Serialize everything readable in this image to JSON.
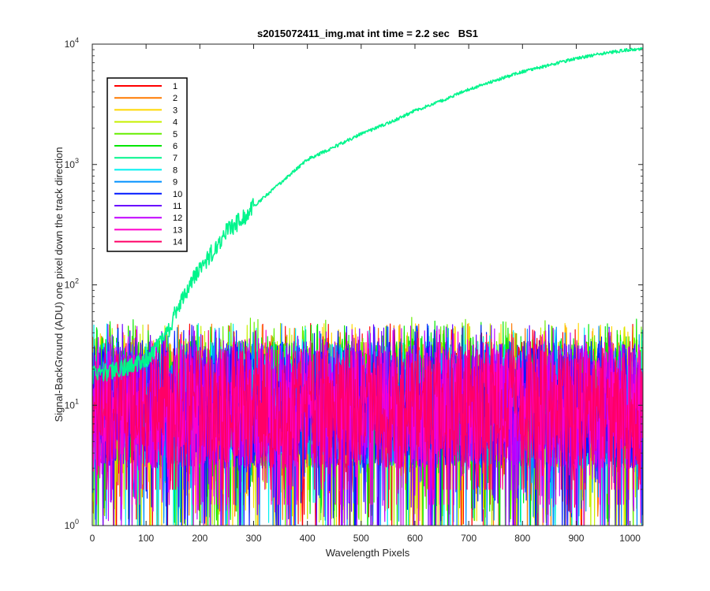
{
  "chart_data": {
    "type": "line",
    "title": "s2015072411_img.mat int time = 2.2 sec   BS1",
    "xlabel": "Wavelength Pixels",
    "ylabel": "Signal-BackGround (ADU) one pixel down the track direction",
    "xlim": [
      0,
      1024
    ],
    "ylim": [
      1,
      10000
    ],
    "yscale": "log",
    "xticks": [
      "0",
      "100",
      "200",
      "300",
      "400",
      "500",
      "600",
      "700",
      "800",
      "900",
      "1000"
    ],
    "yticks": [
      {
        "base": "10",
        "exp": "0"
      },
      {
        "base": "10",
        "exp": "1"
      },
      {
        "base": "10",
        "exp": "2"
      },
      {
        "base": "10",
        "exp": "3"
      },
      {
        "base": "10",
        "exp": "4"
      }
    ],
    "grid": false,
    "legend_position": "upper-left",
    "n_points": 1024,
    "series": [
      {
        "name": "1",
        "color": "#FF0000",
        "profile": "noise",
        "typical_range": [
          1,
          40
        ]
      },
      {
        "name": "2",
        "color": "#FF7A00",
        "profile": "noise",
        "typical_range": [
          1,
          40
        ]
      },
      {
        "name": "3",
        "color": "#FFD800",
        "profile": "noise",
        "typical_range": [
          1,
          40
        ]
      },
      {
        "name": "4",
        "color": "#C7F000",
        "profile": "noise",
        "typical_range": [
          1,
          40
        ]
      },
      {
        "name": "5",
        "color": "#66EE00",
        "profile": "noise",
        "typical_range": [
          1,
          45
        ]
      },
      {
        "name": "6",
        "color": "#00E600",
        "profile": "noise",
        "typical_range": [
          1,
          45
        ]
      },
      {
        "name": "7",
        "color": "#00F58C",
        "profile": "signal",
        "key_points": [
          [
            0,
            18
          ],
          [
            50,
            20
          ],
          [
            100,
            24
          ],
          [
            140,
            40
          ],
          [
            160,
            70
          ],
          [
            200,
            140
          ],
          [
            250,
            280
          ],
          [
            300,
            450
          ],
          [
            350,
            700
          ],
          [
            400,
            1100
          ],
          [
            450,
            1400
          ],
          [
            500,
            1800
          ],
          [
            550,
            2200
          ],
          [
            600,
            2800
          ],
          [
            650,
            3400
          ],
          [
            700,
            4200
          ],
          [
            750,
            5000
          ],
          [
            800,
            5900
          ],
          [
            850,
            6700
          ],
          [
            900,
            7600
          ],
          [
            950,
            8400
          ],
          [
            1000,
            9000
          ],
          [
            1024,
            9200
          ]
        ]
      },
      {
        "name": "8",
        "color": "#00F0F0",
        "profile": "noise",
        "typical_range": [
          1,
          40
        ]
      },
      {
        "name": "9",
        "color": "#0090FF",
        "profile": "noise",
        "typical_range": [
          1,
          40
        ]
      },
      {
        "name": "10",
        "color": "#0018FF",
        "profile": "noise",
        "typical_range": [
          1,
          40
        ]
      },
      {
        "name": "11",
        "color": "#6A00FF",
        "profile": "noise",
        "typical_range": [
          1,
          40
        ]
      },
      {
        "name": "12",
        "color": "#C000FF",
        "profile": "noise",
        "typical_range": [
          2,
          38
        ]
      },
      {
        "name": "13",
        "color": "#FF00CC",
        "profile": "noise",
        "typical_range": [
          3,
          36
        ]
      },
      {
        "name": "14",
        "color": "#FF0066",
        "profile": "noise",
        "typical_range": [
          4,
          35
        ]
      }
    ]
  }
}
